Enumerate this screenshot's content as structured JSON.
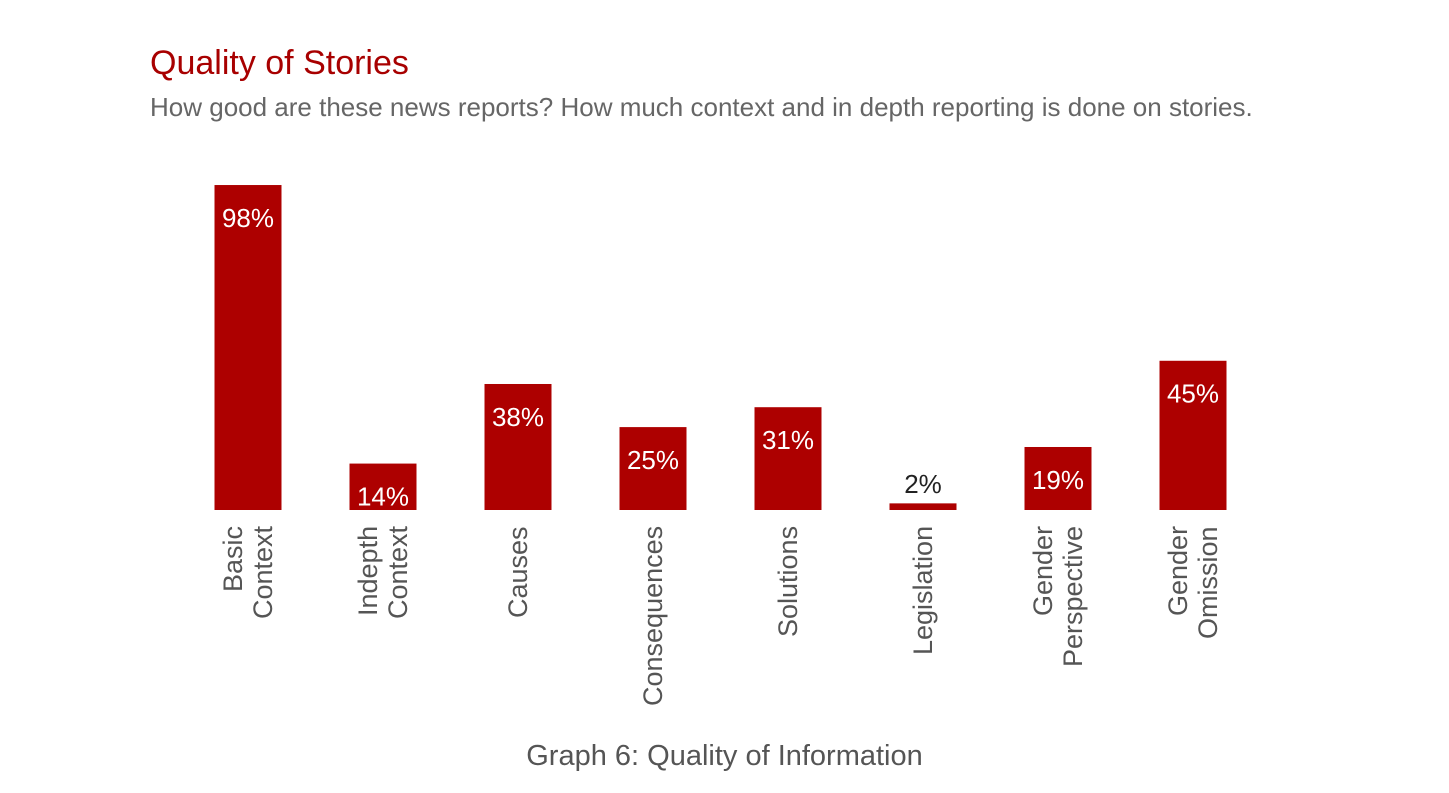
{
  "chart_data": {
    "type": "bar",
    "title": "Quality of Stories",
    "subtitle": "How good are these news reports? How much context and in depth reporting is done on stories.",
    "caption": "Graph 6: Quality of Information",
    "categories": [
      "Basic\nContext",
      "Indepth\nContext",
      "Causes",
      "Consequences",
      "Solutions",
      "Legislation",
      "Gender\nPerspective",
      "Gender\nOmission"
    ],
    "values": [
      98,
      14,
      38,
      25,
      31,
      2,
      19,
      45
    ],
    "value_labels": [
      "98%",
      "14%",
      "38%",
      "25%",
      "31%",
      "2%",
      "19%",
      "45%"
    ],
    "color": "#ad0000",
    "ylim": [
      0,
      100
    ]
  }
}
